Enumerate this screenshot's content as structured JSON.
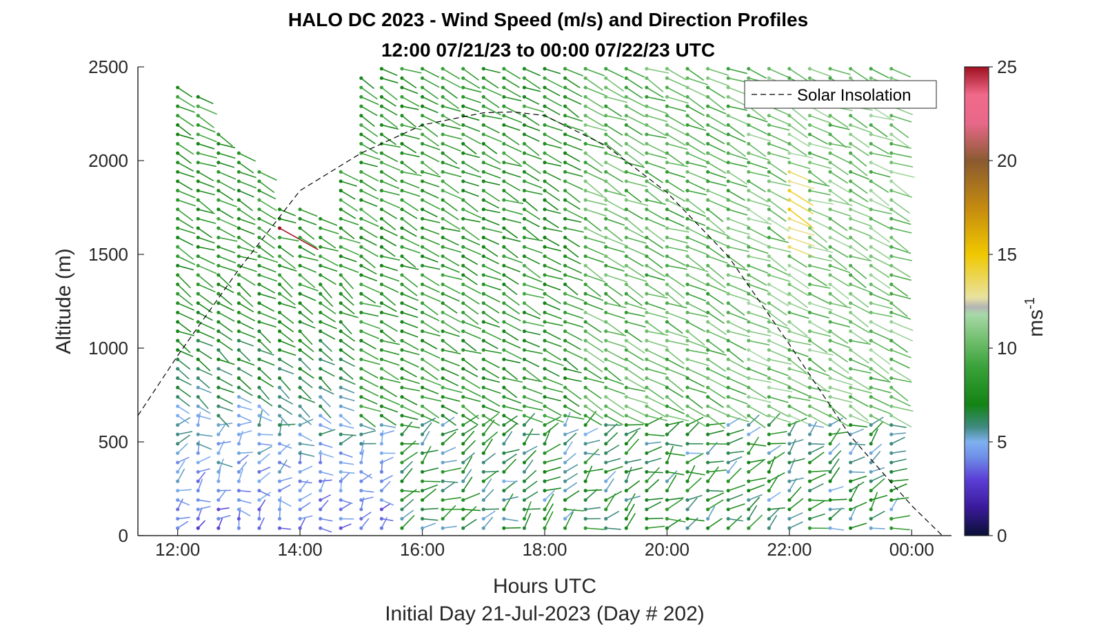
{
  "chart_data": {
    "type": "wind-barb profile (quiver)",
    "title_line1": "HALO DC 2023 - Wind Speed (m/s) and Direction Profiles",
    "title_line2": "12:00 07/21/23 to 00:00 07/22/23  UTC",
    "xlabel": "Hours UTC",
    "subtitle": "Initial Day 21-Jul-2023 (Day # 202)",
    "ylabel": "Altitude (m)",
    "x_ticks": [
      "12:00",
      "14:00",
      "16:00",
      "18:00",
      "20:00",
      "22:00",
      "00:00"
    ],
    "x_tick_hours": [
      12,
      14,
      16,
      18,
      20,
      22,
      24
    ],
    "xlim_hours": [
      11.35,
      24.65
    ],
    "y_ticks": [
      "0",
      "500",
      "1000",
      "1500",
      "2000",
      "2500"
    ],
    "y_tick_values": [
      0,
      500,
      1000,
      1500,
      2000,
      2500
    ],
    "ylim": [
      0,
      2500
    ],
    "profile_interval_min": 20,
    "first_profile_hour": 12.0,
    "last_profile_hour": 23.67,
    "range_gate_m": 50,
    "lowest_gate_m": 40,
    "legend": {
      "entries": [
        "Solar Insolation"
      ],
      "location": "top-right",
      "line_style": "dashed"
    },
    "solar_insolation": {
      "x_hours": [
        11.35,
        12.0,
        13.0,
        14.0,
        15.0,
        16.0,
        17.0,
        17.5,
        18.0,
        19.0,
        20.0,
        21.0,
        22.0,
        23.0,
        24.0,
        24.5
      ],
      "y": [
        640,
        960,
        1420,
        1840,
        2040,
        2190,
        2255,
        2260,
        2240,
        2080,
        1830,
        1490,
        1020,
        530,
        160,
        0
      ]
    },
    "profile_top_m": [
      2420,
      2370,
      2180,
      2050,
      1960,
      1780,
      1750,
      1730,
      1950,
      2440,
      2490,
      2500,
      2500,
      2500,
      2500,
      2500,
      2500,
      2500,
      2500,
      2500,
      2500,
      2500,
      2500,
      2500,
      2500,
      2500,
      2500,
      2500,
      2500,
      2500,
      2500,
      2500,
      2500,
      2500,
      2500,
      2500
    ],
    "wind_regimes": [
      {
        "layer": "boundary layer 0-600 m, before 15:30",
        "speed_ms": [
          2,
          5
        ],
        "direction": "variable, mostly from SW-W"
      },
      {
        "layer": "600-1400 m, before 15:00",
        "speed_ms": [
          4,
          8
        ],
        "direction": "from NW"
      },
      {
        "layer": "1400-2500 m, all day",
        "speed_ms": [
          7,
          11
        ],
        "direction": "from WNW-NW"
      },
      {
        "layer": "1500-1900 m near 22:00",
        "speed_ms": [
          12,
          15
        ],
        "direction": "from NW"
      }
    ],
    "colorbar": {
      "label": "ms",
      "label_superscript": "-1",
      "limits": [
        0,
        25
      ],
      "ticks": [
        "0",
        "5",
        "10",
        "15",
        "20",
        "25"
      ],
      "tick_values": [
        0,
        5,
        10,
        15,
        20,
        25
      ],
      "stops": [
        {
          "value": 0,
          "color": "#0a1035"
        },
        {
          "value": 1.5,
          "color": "#3a1a9a"
        },
        {
          "value": 3,
          "color": "#5b3fd6"
        },
        {
          "value": 4.2,
          "color": "#6f8fe8"
        },
        {
          "value": 5,
          "color": "#7fb0f0"
        },
        {
          "value": 5.8,
          "color": "#3f8a80"
        },
        {
          "value": 7,
          "color": "#138313"
        },
        {
          "value": 9,
          "color": "#3aa23a"
        },
        {
          "value": 10.5,
          "color": "#74c070"
        },
        {
          "value": 11.8,
          "color": "#a8d8a8"
        },
        {
          "value": 12.2,
          "color": "#b5b5b5"
        },
        {
          "value": 12.7,
          "color": "#e8e2a0"
        },
        {
          "value": 15,
          "color": "#f0c800"
        },
        {
          "value": 17.5,
          "color": "#c48a10"
        },
        {
          "value": 20,
          "color": "#8a5a30"
        },
        {
          "value": 22,
          "color": "#e8688a"
        },
        {
          "value": 23.5,
          "color": "#f06a8a"
        },
        {
          "value": 25,
          "color": "#a01020"
        }
      ]
    }
  }
}
